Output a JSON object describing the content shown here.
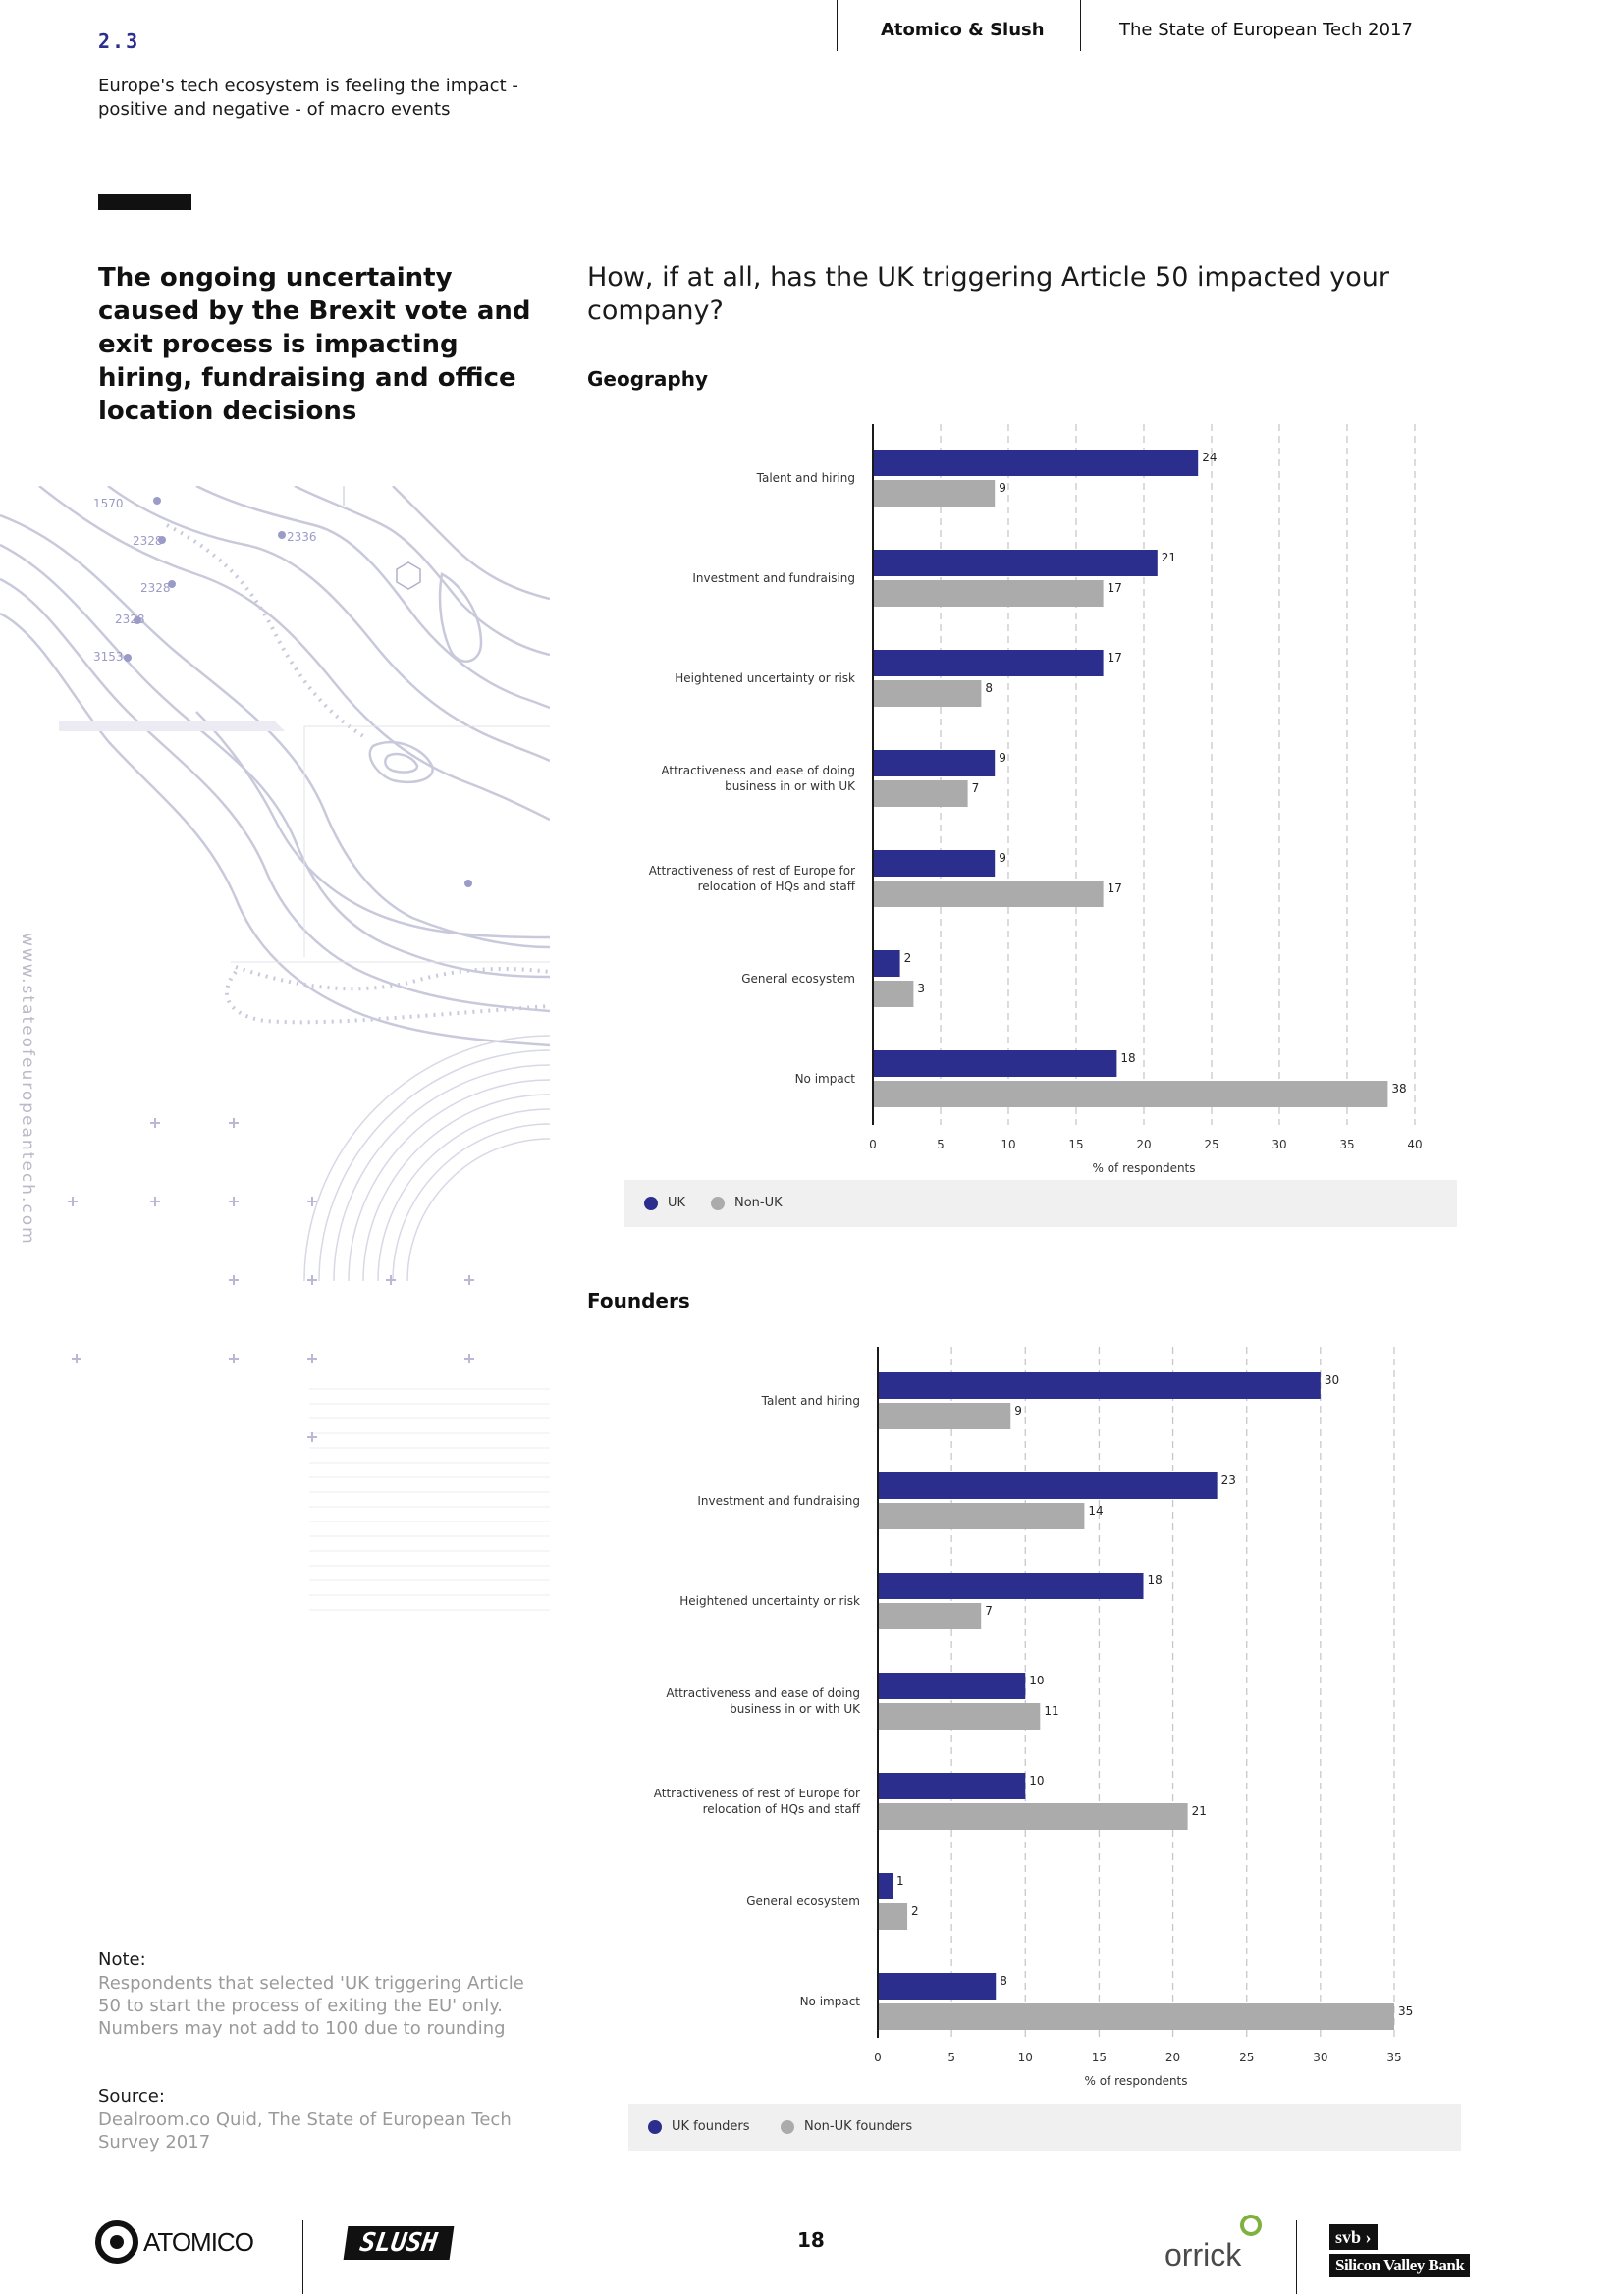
{
  "header": {
    "section_number": "2.3",
    "section_title": "Europe's tech ecosystem is feeling the impact - positive and negative - of macro events",
    "brand": "Atomico & Slush",
    "report": "The State of European Tech 2017"
  },
  "headline": "The ongoing uncertainty caused by the Brexit vote and exit process is impacting hiring, fundraising and office location decisions",
  "question": "How, if at all, has the UK triggering Article 50 impacted your company?",
  "side_url": "www.stateofeuropeantech.com",
  "note": {
    "heading": "Note:",
    "body": "Respondents that selected 'UK triggering Article 50 to start the process of exiting the EU' only. Numbers may not add to 100 due to rounding"
  },
  "source": {
    "heading": "Source:",
    "body": "Dealroom.co Quid, The State of European Tech Survey 2017"
  },
  "page_number": "18",
  "footer": {
    "logo_atomico": "ATOMICO",
    "logo_slush": "SLUSH",
    "logo_orrick": "orrick",
    "logo_svb_mark": "svb",
    "logo_svb": "Silicon Valley Bank"
  },
  "colors": {
    "uk": "#2b2e8c",
    "non_uk": "#ababab",
    "accent": "#2b2e8c"
  },
  "chart_data": [
    {
      "type": "bar",
      "orientation": "horizontal",
      "title": "Geography",
      "xlabel": "% of respondents",
      "categories": [
        [
          "Talent and hiring"
        ],
        [
          "Investment and fundraising"
        ],
        [
          "Heightened uncertainty or risk"
        ],
        [
          "Attractiveness and ease of doing",
          "business in or with UK"
        ],
        [
          "Attractiveness of rest of Europe for",
          "relocation of HQs and staff"
        ],
        [
          "General ecosystem"
        ],
        [
          "No impact"
        ]
      ],
      "series": [
        {
          "name": "UK",
          "values": [
            24,
            21,
            17,
            9,
            9,
            2,
            18
          ]
        },
        {
          "name": "Non-UK",
          "values": [
            9,
            17,
            8,
            7,
            17,
            3,
            38
          ]
        }
      ],
      "xlim": [
        0,
        40
      ],
      "xticks": [
        0,
        5,
        10,
        15,
        20,
        25,
        30,
        35,
        40
      ],
      "grid": true,
      "legend": "bottom"
    },
    {
      "type": "bar",
      "orientation": "horizontal",
      "title": "Founders",
      "xlabel": "% of respondents",
      "categories": [
        [
          "Talent and hiring"
        ],
        [
          "Investment and fundraising"
        ],
        [
          "Heightened uncertainty or risk"
        ],
        [
          "Attractiveness and ease of doing",
          "business in or with UK"
        ],
        [
          "Attractiveness of rest of Europe for",
          "relocation of HQs and staff"
        ],
        [
          "General ecosystem"
        ],
        [
          "No impact"
        ]
      ],
      "series": [
        {
          "name": "UK founders",
          "values": [
            30,
            23,
            18,
            10,
            10,
            1,
            8
          ]
        },
        {
          "name": "Non-UK founders",
          "values": [
            9,
            14,
            7,
            11,
            21,
            2,
            35
          ]
        }
      ],
      "xlim": [
        0,
        35
      ],
      "xticks": [
        0,
        5,
        10,
        15,
        20,
        25,
        30,
        35
      ],
      "grid": true,
      "legend": "bottom"
    }
  ]
}
